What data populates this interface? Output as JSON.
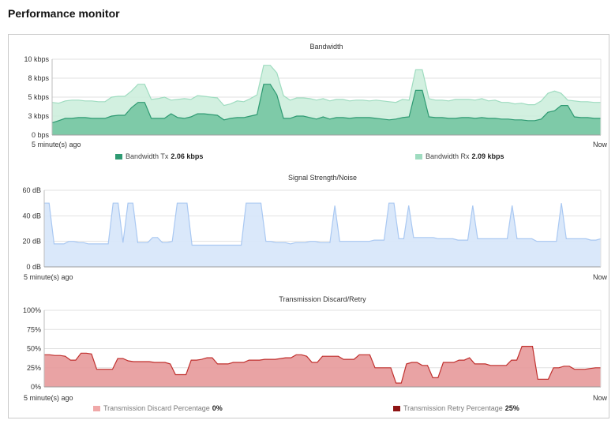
{
  "page": {
    "title": "Performance monitor"
  },
  "chart_data": [
    {
      "type": "area",
      "title": "Bandwidth",
      "yunit": "kbps",
      "ylim": [
        0,
        10
      ],
      "yticks": [
        {
          "v": 0,
          "label": "0 bps"
        },
        {
          "v": 2.5,
          "label": "3 kbps"
        },
        {
          "v": 5,
          "label": "5 kbps"
        },
        {
          "v": 7.5,
          "label": "8 kbps"
        },
        {
          "v": 10,
          "label": "10 kbps"
        }
      ],
      "x_start_label": "5 minute(s) ago",
      "x_end_label": "Now",
      "grid": true,
      "series": [
        {
          "name": "Bandwidth Rx",
          "value_label": "2.09 kbps",
          "color": "#9fdcc0",
          "fill": "#cdeedd",
          "values": [
            4.3,
            4.2,
            4.5,
            4.6,
            4.6,
            4.5,
            4.5,
            4.4,
            4.4,
            5.0,
            5.1,
            5.1,
            5.8,
            6.7,
            6.7,
            4.7,
            4.8,
            5.0,
            4.6,
            4.7,
            4.8,
            4.7,
            5.2,
            5.1,
            5.0,
            4.9,
            3.9,
            4.1,
            4.5,
            4.4,
            4.8,
            5.3,
            9.2,
            9.2,
            8.2,
            5.2,
            4.6,
            4.9,
            4.9,
            4.8,
            4.6,
            4.8,
            4.5,
            4.7,
            4.7,
            4.5,
            4.6,
            4.6,
            4.5,
            4.6,
            4.5,
            4.4,
            4.3,
            4.7,
            4.6,
            8.6,
            8.6,
            4.8,
            4.6,
            4.6,
            4.5,
            4.7,
            4.7,
            4.7,
            4.6,
            4.8,
            4.5,
            4.6,
            4.3,
            4.3,
            4.1,
            4.2,
            4.0,
            4.0,
            4.5,
            5.5,
            5.8,
            5.5,
            4.6,
            4.5,
            4.4,
            4.4,
            4.3,
            4.3
          ]
        },
        {
          "name": "Bandwidth Tx",
          "value_label": "2.06 kbps",
          "color": "#2e9a72",
          "fill": "#74c5a2",
          "values": [
            1.6,
            1.9,
            2.2,
            2.2,
            2.3,
            2.3,
            2.2,
            2.2,
            2.2,
            2.5,
            2.6,
            2.6,
            3.6,
            4.3,
            4.3,
            2.2,
            2.2,
            2.2,
            2.8,
            2.3,
            2.2,
            2.4,
            2.8,
            2.8,
            2.7,
            2.6,
            2.0,
            2.2,
            2.3,
            2.3,
            2.5,
            2.7,
            6.7,
            6.7,
            5.3,
            2.2,
            2.2,
            2.5,
            2.5,
            2.3,
            2.1,
            2.4,
            2.1,
            2.3,
            2.3,
            2.2,
            2.3,
            2.3,
            2.3,
            2.2,
            2.1,
            2.0,
            2.1,
            2.3,
            2.4,
            5.9,
            5.9,
            2.4,
            2.3,
            2.3,
            2.2,
            2.2,
            2.3,
            2.3,
            2.2,
            2.3,
            2.2,
            2.2,
            2.1,
            2.1,
            2.0,
            2.0,
            1.9,
            1.9,
            2.1,
            3.0,
            3.2,
            3.9,
            3.9,
            2.4,
            2.3,
            2.3,
            2.2,
            2.2
          ]
        }
      ]
    },
    {
      "type": "area",
      "title": "Signal Strength/Noise",
      "yunit": "dB",
      "ylim": [
        0,
        60
      ],
      "yticks": [
        {
          "v": 0,
          "label": "0 dB"
        },
        {
          "v": 20,
          "label": "20 dB"
        },
        {
          "v": 40,
          "label": "40 dB"
        },
        {
          "v": 60,
          "label": "60 dB"
        }
      ],
      "x_start_label": "5 minute(s) ago",
      "x_end_label": "Now",
      "grid": true,
      "series": [
        {
          "name": "",
          "color": "#a9c8f2",
          "fill": "#d6e5fa",
          "values": [
            50,
            50,
            18,
            18,
            18,
            20,
            20,
            19,
            19,
            18,
            18,
            18,
            18,
            18,
            50,
            50,
            19,
            50,
            50,
            19,
            19,
            19,
            23,
            23,
            19,
            19,
            20,
            50,
            50,
            50,
            17,
            17,
            17,
            17,
            17,
            17,
            17,
            17,
            17,
            17,
            17,
            50,
            50,
            50,
            50,
            20,
            20,
            19,
            19,
            19,
            18,
            19,
            19,
            19,
            20,
            20,
            19,
            19,
            19,
            48,
            20,
            20,
            20,
            20,
            20,
            20,
            20,
            21,
            21,
            21,
            50,
            50,
            22,
            22,
            48,
            23,
            23,
            23,
            23,
            23,
            22,
            22,
            22,
            22,
            21,
            21,
            21,
            48,
            22,
            22,
            22,
            22,
            22,
            22,
            22,
            48,
            22,
            22,
            22,
            22,
            20,
            20,
            20,
            20,
            20,
            50,
            22,
            22,
            22,
            22,
            22,
            21,
            21,
            22
          ]
        }
      ]
    },
    {
      "type": "area",
      "title": "Transmission Discard/Retry",
      "yunit": "%",
      "ylim": [
        0,
        100
      ],
      "yticks": [
        {
          "v": 0,
          "label": "0%"
        },
        {
          "v": 25,
          "label": "25%"
        },
        {
          "v": 50,
          "label": "50%"
        },
        {
          "v": 75,
          "label": "75%"
        },
        {
          "v": 100,
          "label": "100%"
        }
      ],
      "x_start_label": "5 minute(s) ago",
      "x_end_label": "Now",
      "grid": true,
      "series": [
        {
          "name": "Transmission Discard Percentage",
          "value_label": "0%",
          "color": "#f0a8a8",
          "fill": "#f0a8a8",
          "values": []
        },
        {
          "name": "Transmission Retry Percentage",
          "value_label": "25%",
          "color": "#c0302e",
          "fill": "#e7999a",
          "values": [
            42,
            42,
            41,
            41,
            40,
            35,
            35,
            44,
            44,
            43,
            23,
            23,
            23,
            23,
            37,
            37,
            34,
            33,
            33,
            33,
            33,
            32,
            32,
            32,
            30,
            16,
            16,
            16,
            35,
            35,
            36,
            38,
            38,
            30,
            30,
            30,
            32,
            32,
            32,
            35,
            35,
            35,
            36,
            36,
            36,
            37,
            38,
            38,
            42,
            42,
            40,
            32,
            32,
            40,
            40,
            40,
            40,
            36,
            36,
            36,
            42,
            42,
            42,
            25,
            25,
            25,
            25,
            5,
            5,
            30,
            32,
            32,
            28,
            28,
            12,
            12,
            32,
            32,
            32,
            35,
            35,
            38,
            30,
            30,
            30,
            28,
            28,
            28,
            28,
            35,
            35,
            53,
            53,
            53,
            10,
            10,
            10,
            25,
            25,
            27,
            27,
            23,
            23,
            23,
            24,
            25,
            25
          ]
        }
      ]
    }
  ]
}
